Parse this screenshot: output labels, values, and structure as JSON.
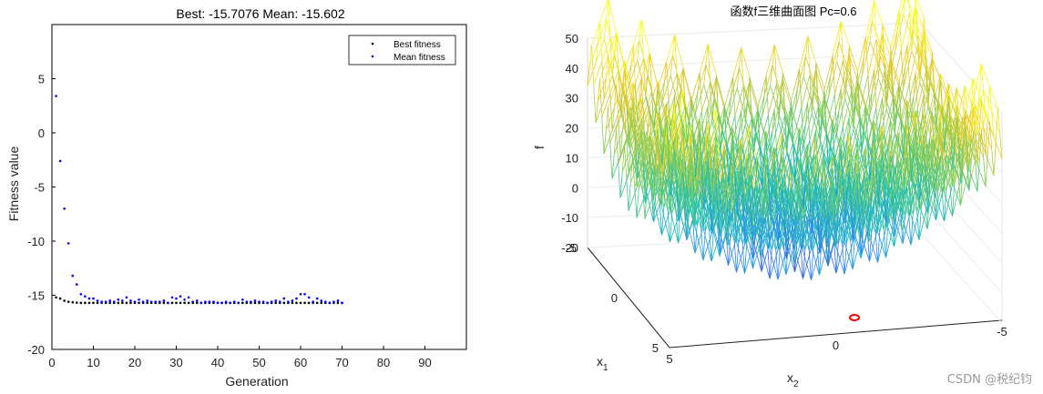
{
  "chart_data": [
    {
      "type": "scatter",
      "title": "Best: -15.7076 Mean: -15.602",
      "xlabel": "Generation",
      "ylabel": "Fitness value",
      "xlim": [
        0,
        100
      ],
      "ylim": [
        -20,
        10
      ],
      "xticks": [
        "0",
        "10",
        "20",
        "30",
        "40",
        "50",
        "60",
        "70",
        "80",
        "90"
      ],
      "yticks": [
        "5",
        "0",
        "-5",
        "-10",
        "-15",
        "-20"
      ],
      "legend": {
        "position": "top-right",
        "entries": [
          "Best fitness",
          "Mean fitness"
        ]
      },
      "series": [
        {
          "name": "Best fitness",
          "color": "#000000",
          "x": [
            1,
            2,
            3,
            4,
            5,
            6,
            7,
            8,
            9,
            10,
            11,
            12,
            13,
            14,
            15,
            16,
            17,
            18,
            19,
            20,
            21,
            22,
            23,
            24,
            25,
            26,
            27,
            28,
            29,
            30,
            31,
            32,
            33,
            34,
            35,
            36,
            37,
            38,
            39,
            40,
            41,
            42,
            43,
            44,
            45,
            46,
            47,
            48,
            49,
            50,
            51,
            52,
            53,
            54,
            55,
            56,
            57,
            58,
            59,
            60,
            61,
            62,
            63,
            64,
            65,
            66,
            67,
            68,
            69,
            70
          ],
          "values": [
            -15.2,
            -15.3,
            -15.5,
            -15.6,
            -15.65,
            -15.68,
            -15.7,
            -15.7,
            -15.7,
            -15.7,
            -15.7,
            -15.7,
            -15.7,
            -15.7,
            -15.7,
            -15.7,
            -15.7,
            -15.7,
            -15.7,
            -15.7,
            -15.7,
            -15.7,
            -15.7,
            -15.7,
            -15.7,
            -15.7,
            -15.7,
            -15.7,
            -15.7,
            -15.7,
            -15.7,
            -15.7,
            -15.7,
            -15.7,
            -15.7,
            -15.7,
            -15.7,
            -15.7,
            -15.7,
            -15.7,
            -15.7,
            -15.7,
            -15.7,
            -15.7,
            -15.7,
            -15.7,
            -15.7,
            -15.7,
            -15.7,
            -15.7,
            -15.7,
            -15.7,
            -15.7,
            -15.7,
            -15.7,
            -15.7,
            -15.7,
            -15.7,
            -15.7,
            -15.7,
            -15.7,
            -15.7,
            -15.7,
            -15.7,
            -15.7,
            -15.7,
            -15.7,
            -15.7,
            -15.7,
            -15.7
          ]
        },
        {
          "name": "Mean fitness",
          "color": "#0000ff",
          "x": [
            1,
            2,
            3,
            4,
            5,
            6,
            7,
            8,
            9,
            10,
            11,
            12,
            13,
            14,
            15,
            16,
            17,
            18,
            19,
            20,
            21,
            22,
            23,
            24,
            25,
            26,
            27,
            28,
            29,
            30,
            31,
            32,
            33,
            34,
            35,
            36,
            37,
            38,
            39,
            40,
            41,
            42,
            43,
            44,
            45,
            46,
            47,
            48,
            49,
            50,
            51,
            52,
            53,
            54,
            55,
            56,
            57,
            58,
            59,
            60,
            61,
            62,
            63,
            64,
            65,
            66,
            67,
            68,
            69,
            70
          ],
          "values": [
            3.4,
            -2.6,
            -7.0,
            -10.2,
            -13.2,
            -14.0,
            -14.9,
            -15.1,
            -15.3,
            -15.3,
            -15.5,
            -15.6,
            -15.6,
            -15.5,
            -15.6,
            -15.4,
            -15.5,
            -15.2,
            -15.5,
            -15.6,
            -15.4,
            -15.6,
            -15.5,
            -15.6,
            -15.6,
            -15.6,
            -15.5,
            -15.7,
            -15.2,
            -15.3,
            -15.1,
            -15.4,
            -15.2,
            -15.6,
            -15.5,
            -15.7,
            -15.6,
            -15.6,
            -15.6,
            -15.7,
            -15.7,
            -15.6,
            -15.7,
            -15.6,
            -15.7,
            -15.4,
            -15.6,
            -15.6,
            -15.5,
            -15.6,
            -15.6,
            -15.7,
            -15.6,
            -15.5,
            -15.6,
            -15.3,
            -15.6,
            -15.5,
            -15.3,
            -14.9,
            -14.9,
            -15.2,
            -15.6,
            -15.3,
            -15.5,
            -15.6,
            -15.7,
            -15.6,
            -15.5,
            -15.7
          ]
        }
      ]
    },
    {
      "type": "surface",
      "title": "函数f三维曲面图 Pc=0.6",
      "zlabel": "f",
      "xlabel": "x",
      "xlabel_sub": "1",
      "ylabel": "x",
      "ylabel_sub": "2",
      "zticks": [
        "50",
        "40",
        "30",
        "20",
        "10",
        "0",
        "-10",
        "-20"
      ],
      "x1ticks": [
        "5",
        "0",
        "-5"
      ],
      "x2ticks": [
        "5",
        "0",
        "-5"
      ],
      "zlim": [
        -20,
        50
      ],
      "x1lim": [
        -5,
        5
      ],
      "x2lim": [
        -5,
        5
      ],
      "optimum": {
        "label": "best point",
        "color": "#ff0000"
      }
    }
  ],
  "watermark": "CSDN @税纪钧"
}
